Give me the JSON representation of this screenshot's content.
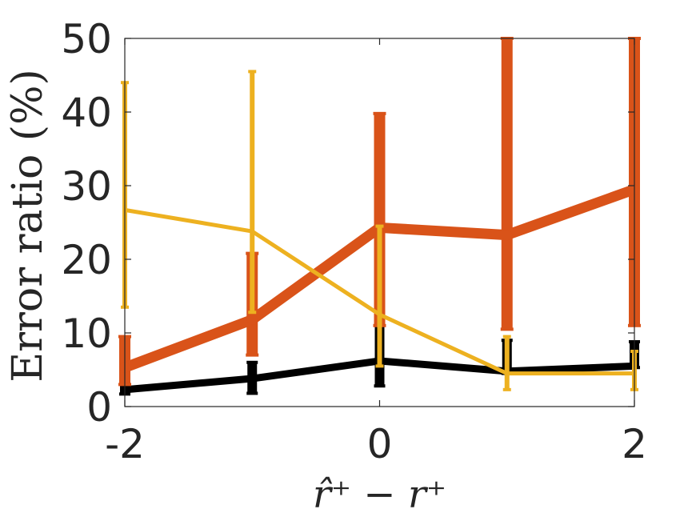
{
  "chart_data": {
    "type": "line",
    "ylabel": "Error ratio (%)",
    "xlabel": "r̂⁺ − r⁺",
    "xlim": [
      -2,
      2
    ],
    "ylim": [
      0,
      50
    ],
    "xticks": [
      -2,
      0,
      2
    ],
    "xtick_labels": [
      "-2",
      "0",
      "2"
    ],
    "yticks": [
      0,
      10,
      20,
      30,
      40,
      50
    ],
    "ytick_labels": [
      "0",
      "10",
      "20",
      "30",
      "40",
      "50"
    ],
    "grid": false,
    "legend": "none",
    "x": [
      -2,
      -1,
      0,
      1,
      2
    ],
    "series": [
      {
        "color": "#000000",
        "values": [
          2.3,
          3.8,
          6.2,
          4.8,
          5.5
        ],
        "err_low": [
          1.7,
          1.8,
          2.8,
          4.5,
          5.3
        ],
        "err_high": [
          4.3,
          6.0,
          13.0,
          9.0,
          8.8
        ]
      },
      {
        "color": "#D95319",
        "values": [
          5.3,
          11.8,
          24.3,
          23.3,
          29.5
        ],
        "err_low": [
          3.0,
          7.0,
          11.0,
          10.5,
          11.0
        ],
        "err_high": [
          9.5,
          20.8,
          39.8,
          50.0,
          50.0
        ]
      },
      {
        "color": "#EDB120",
        "values": [
          26.7,
          23.8,
          12.5,
          4.5,
          4.5
        ],
        "err_low": [
          13.5,
          12.8,
          5.5,
          2.3,
          2.3
        ],
        "err_high": [
          44.0,
          45.5,
          24.5,
          9.5,
          7.5
        ]
      }
    ]
  }
}
